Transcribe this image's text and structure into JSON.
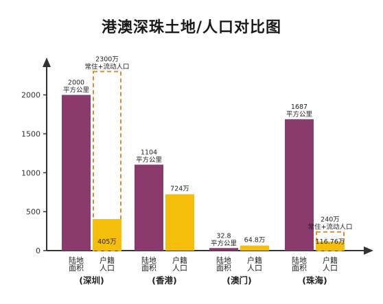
{
  "chart_data": {
    "type": "bar",
    "title": "港澳深珠土地/人口对比图",
    "yticks": [
      0,
      500,
      1000,
      1500,
      2000
    ],
    "ylim": [
      0,
      2400
    ],
    "bar_categories": [
      "陆地面积",
      "户籍人口"
    ],
    "colors": {
      "land": "#8b3a6d",
      "population": "#f5be0b",
      "resident_outline": "#e08a2e"
    },
    "groups": [
      {
        "name": "(深圳)",
        "land_area": 2000,
        "land_label": [
          "2000",
          "平方公里"
        ],
        "registered_pop": 405,
        "pop_label": [
          "405万"
        ],
        "pop_label_inside": true,
        "resident_pop": 2300,
        "resident_label": [
          "2300万",
          "常住+流动人口"
        ]
      },
      {
        "name": "(香港)",
        "land_area": 1104,
        "land_label": [
          "1104",
          "平方公里"
        ],
        "registered_pop": 724,
        "pop_label": [
          "724万"
        ],
        "pop_label_inside": false
      },
      {
        "name": "(澳门)",
        "land_area": 32.8,
        "land_label": [
          "32.8",
          "平方公里"
        ],
        "registered_pop": 64.8,
        "pop_label": [
          "64.8万"
        ],
        "pop_label_inside": false
      },
      {
        "name": "(珠海)",
        "land_area": 1687,
        "land_label": [
          "1687",
          "平方公里"
        ],
        "registered_pop": 116.76,
        "pop_label": [
          "116.76万"
        ],
        "pop_label_inside": true,
        "resident_pop": 240,
        "resident_label": [
          "240万",
          "常住+流动人口"
        ]
      }
    ]
  }
}
